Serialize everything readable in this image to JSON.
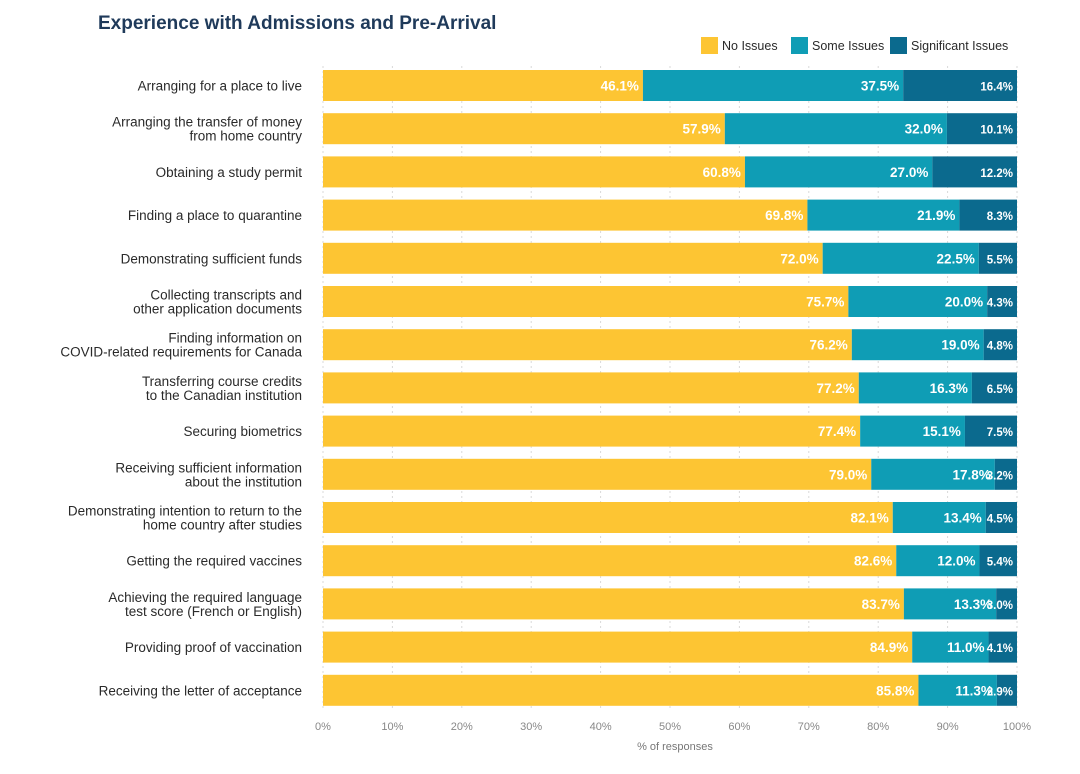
{
  "chart_data": {
    "type": "bar",
    "orientation": "horizontal",
    "stacked": true,
    "title": "Experience with Admissions and Pre-Arrival",
    "xlabel": "% of responses",
    "xlim": [
      0,
      100
    ],
    "x_ticks": [
      "0%",
      "10%",
      "20%",
      "30%",
      "40%",
      "50%",
      "60%",
      "70%",
      "80%",
      "90%",
      "100%"
    ],
    "legend_position": "top-right",
    "categories": [
      [
        "Arranging for a place to live"
      ],
      [
        "Arranging the transfer of money",
        "from home country"
      ],
      [
        "Obtaining a study permit"
      ],
      [
        "Finding a place to quarantine"
      ],
      [
        "Demonstrating sufficient funds"
      ],
      [
        "Collecting transcripts and",
        "other application documents"
      ],
      [
        "Finding information on",
        "COVID-related requirements for Canada"
      ],
      [
        "Transferring course credits",
        "to the Canadian institution"
      ],
      [
        "Securing biometrics"
      ],
      [
        "Receiving sufficient information",
        "about the institution"
      ],
      [
        "Demonstrating intention to return to the",
        "home country after studies"
      ],
      [
        "Getting the required vaccines"
      ],
      [
        "Achieving the required language",
        "test score (French or English)"
      ],
      [
        "Providing proof of vaccination"
      ],
      [
        "Receiving the letter of acceptance"
      ]
    ],
    "series": [
      {
        "name": "No Issues",
        "color": "#fdc533",
        "values": [
          46.1,
          57.9,
          60.8,
          69.8,
          72.0,
          75.7,
          76.2,
          77.2,
          77.4,
          79.0,
          82.1,
          82.6,
          83.7,
          84.9,
          85.8
        ]
      },
      {
        "name": "Some Issues",
        "color": "#0f9db5",
        "values": [
          37.5,
          32.0,
          27.0,
          21.9,
          22.5,
          20.0,
          19.0,
          16.3,
          15.1,
          17.8,
          13.4,
          12.0,
          13.3,
          11.0,
          11.3
        ]
      },
      {
        "name": "Significant Issues",
        "color": "#0b6a8e",
        "values": [
          16.4,
          10.1,
          12.2,
          8.3,
          5.5,
          4.3,
          4.8,
          6.5,
          7.5,
          3.2,
          4.5,
          5.4,
          3.0,
          4.1,
          2.9
        ]
      }
    ],
    "grid": true
  }
}
